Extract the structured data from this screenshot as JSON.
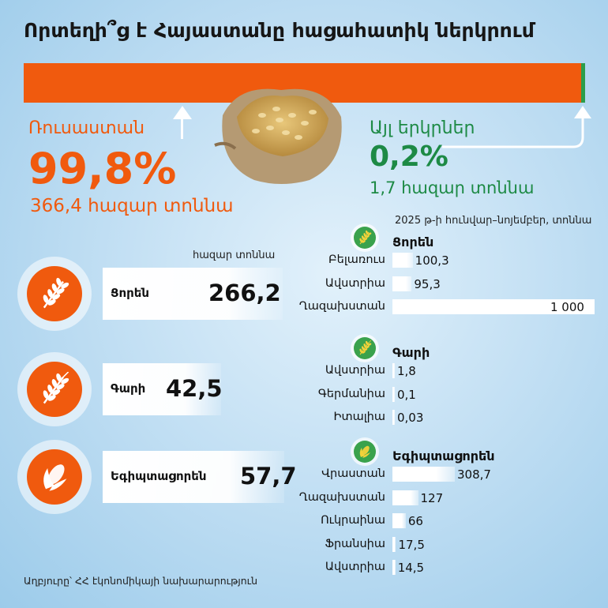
{
  "title": "Որտեղի՞ց է Հայաստանը հացահատիկ ներկրում",
  "share": {
    "russia": {
      "name": "Ռուսաստան",
      "percent": "99,8%",
      "amount": "366,4 հազար տոննա"
    },
    "other": {
      "name": "Այլ երկրներ",
      "percent": "0,2%",
      "amount": "1,7 հազար տոննա"
    }
  },
  "units": {
    "left": "հազար տոննա",
    "right": "2025 թ-ի հունվար–նոյեմբեր, տոննա"
  },
  "source": "Աղբյուրը՝ ՀՀ էկոնոմիկայի նախարարություն",
  "colors": {
    "russia": "#f05a0e",
    "other": "#2c9e4b",
    "bar": "#ffffff"
  },
  "chart_data": [
    {
      "type": "bar",
      "categories": [
        "Ռուսաստան",
        "Այլ երկրներ"
      ],
      "values": [
        99.8,
        0.2
      ]
    },
    {
      "type": "bar",
      "categories": [
        "Ցորեն",
        "Գարի",
        "Եգիպտացորեն"
      ],
      "values": [
        266.2,
        42.5,
        57.7
      ],
      "value_labels": [
        "266,2",
        "42,5",
        "57,7"
      ],
      "icons": [
        "wheat-icon",
        "barley-icon",
        "corn-icon"
      ]
    },
    {
      "type": "bar",
      "groups": [
        {
          "name": "Ցորեն",
          "icon": "wheat-icon",
          "categories": [
            "Բելառուս",
            "Ավստրիա",
            "Ղազախստան"
          ],
          "values": [
            100.3,
            95.3,
            1000
          ],
          "value_labels": [
            "100,3",
            "95,3",
            "1 000"
          ]
        },
        {
          "name": "Գարի",
          "icon": "barley-icon",
          "categories": [
            "Ավստրիա",
            "Գերմանիա",
            "Իտալիա"
          ],
          "values": [
            1.8,
            0.1,
            0.03
          ],
          "value_labels": [
            "1,8",
            "0,1",
            "0,03"
          ]
        },
        {
          "name": "Եգիպտացորեն",
          "icon": "corn-icon",
          "categories": [
            "Վրաստան",
            "Ղազախստան",
            "Ուկրաինա",
            "Ֆրանսիա",
            "Ավստրիա"
          ],
          "values": [
            308.7,
            127,
            66,
            17.5,
            14.5
          ],
          "value_labels": [
            "308,7",
            "127",
            "66",
            "17,5",
            "14,5"
          ]
        }
      ]
    }
  ]
}
